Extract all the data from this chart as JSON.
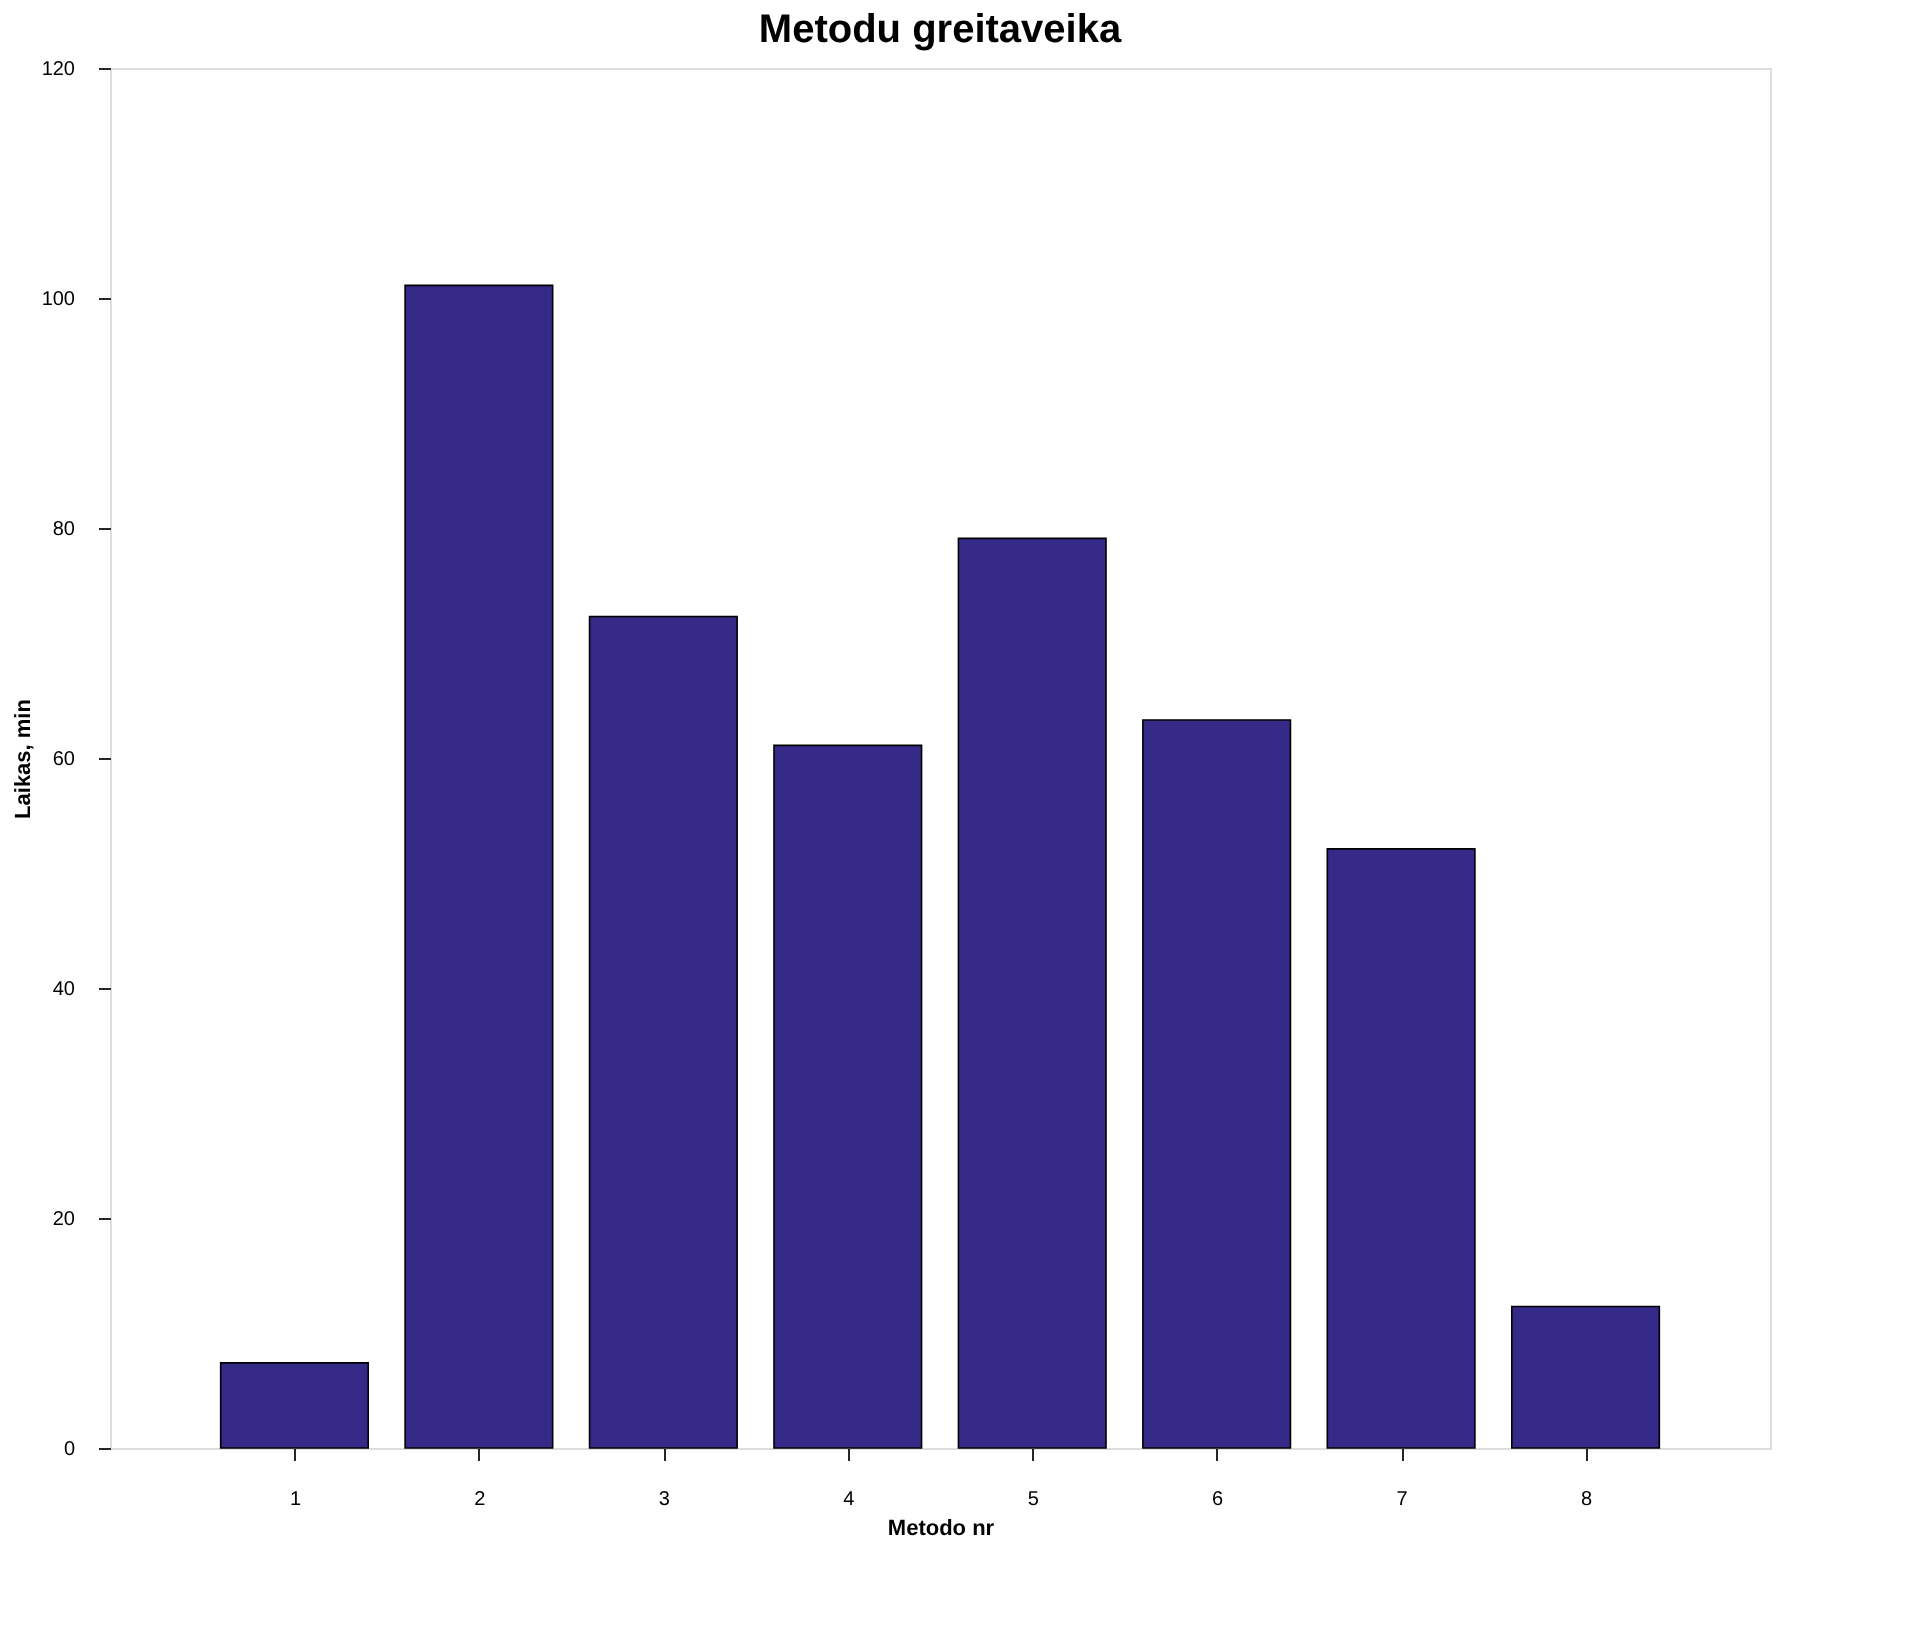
{
  "chart_data": {
    "type": "bar",
    "title": "Metodu greitaveika",
    "xlabel": "Metodo nr",
    "ylabel": "Laikas, min",
    "categories": [
      "1",
      "2",
      "3",
      "4",
      "5",
      "6",
      "7",
      "8"
    ],
    "values": [
      7.4,
      101.1,
      72.3,
      61.1,
      79.1,
      63.3,
      52.1,
      12.3
    ],
    "color": "#352a87",
    "ylim": [
      0,
      120
    ],
    "yticks": [
      0,
      20,
      40,
      60,
      80,
      100,
      120
    ],
    "grid": false
  }
}
